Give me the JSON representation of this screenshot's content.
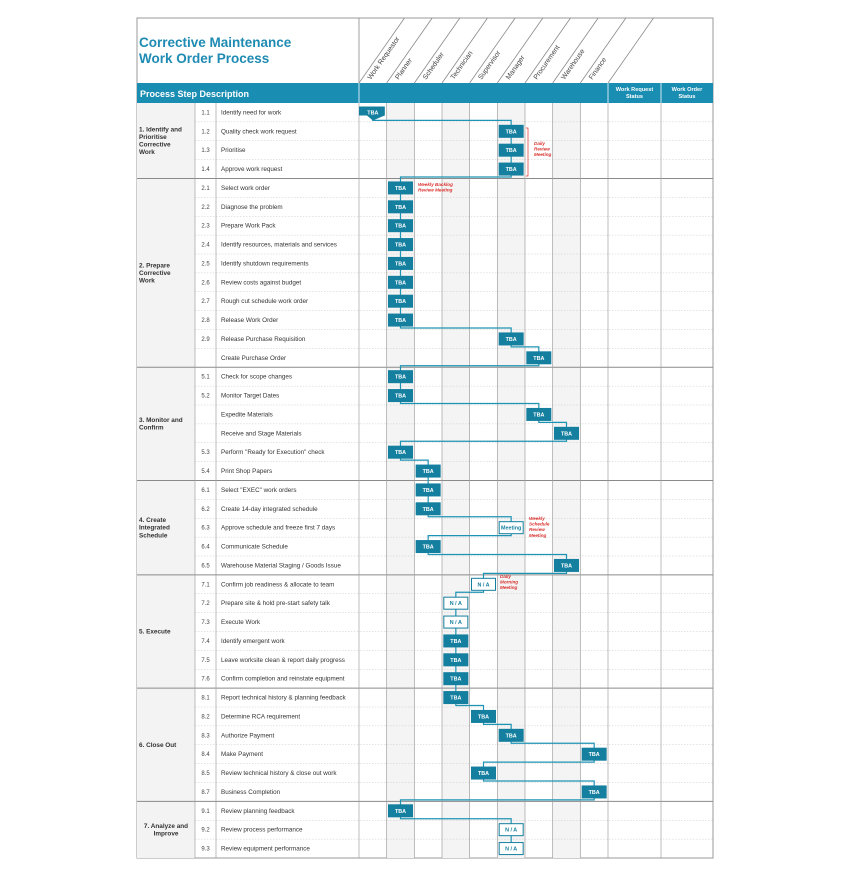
{
  "header": {
    "title_lines": [
      "Corrective Maintenance",
      "Work Order Process"
    ],
    "section_label": "Process Step Description",
    "roles": [
      "Work Requestor",
      "Planner",
      "Scheduler",
      "Technician",
      "Supervisor",
      "Manager",
      "Procurement",
      "Warehouse",
      "Finance"
    ],
    "status_columns": [
      [
        "Work Request",
        "Status"
      ],
      [
        "Work Order",
        "Status"
      ]
    ]
  },
  "phases": [
    {
      "label_lines": [
        "1. Identify and",
        "Prioritise",
        "Corrective",
        "Work"
      ],
      "steps": [
        {
          "number": "1.1",
          "description": "Identify need for work",
          "col": 0,
          "box": "TBA"
        },
        {
          "number": "1.2",
          "description": "Quality check work request",
          "col": 5,
          "box": "TBA"
        },
        {
          "number": "1.3",
          "description": "Prioritise",
          "col": 5,
          "box": "TBA"
        },
        {
          "number": "1.4",
          "description": "Approve work request",
          "col": 5,
          "box": "TBA"
        }
      ]
    },
    {
      "label_lines": [
        "2. Prepare",
        "Corrective",
        "Work"
      ],
      "steps": [
        {
          "number": "2.1",
          "description": "Select work order",
          "col": 1,
          "box": "TBA"
        },
        {
          "number": "2.2",
          "description": "Diagnose the problem",
          "col": 1,
          "box": "TBA"
        },
        {
          "number": "2.3",
          "description": "Prepare Work Pack",
          "col": 1,
          "box": "TBA"
        },
        {
          "number": "2.4",
          "description": "Identify resources, materials and services",
          "col": 1,
          "box": "TBA"
        },
        {
          "number": "2.5",
          "description": "Identify shutdown requirements",
          "col": 1,
          "box": "TBA"
        },
        {
          "number": "2.6",
          "description": "Review costs against budget",
          "col": 1,
          "box": "TBA"
        },
        {
          "number": "2.7",
          "description": "Rough cut schedule work order",
          "col": 1,
          "box": "TBA"
        },
        {
          "number": "2.8",
          "description": "Release Work Order",
          "col": 1,
          "box": "TBA"
        },
        {
          "number": "2.9",
          "description": "Release Purchase Requisition",
          "col": 5,
          "box": "TBA"
        },
        {
          "number": null,
          "description": "Create Purchase Order",
          "col": 6,
          "box": "TBA"
        }
      ]
    },
    {
      "label_lines": [
        "3. Monitor and",
        "Confirm"
      ],
      "steps": [
        {
          "number": "5.1",
          "description": "Check for scope changes",
          "col": 1,
          "box": "TBA"
        },
        {
          "number": "5.2",
          "description": "Monitor Target Dates",
          "col": 1,
          "box": "TBA"
        },
        {
          "number": null,
          "description": "Expedite Materials",
          "col": 6,
          "box": "TBA"
        },
        {
          "number": null,
          "description": "Receive and Stage Materials",
          "col": 7,
          "box": "TBA"
        },
        {
          "number": "5.3",
          "description": "Perform \"Ready for Execution\" check",
          "col": 1,
          "box": "TBA"
        },
        {
          "number": "5.4",
          "description": "Print Shop Papers",
          "col": 2,
          "box": "TBA"
        }
      ]
    },
    {
      "label_lines": [
        "4. Create",
        "Integrated",
        "Schedule"
      ],
      "steps": [
        {
          "number": "6.1",
          "description": "Select \"EXEC\" work orders",
          "col": 2,
          "box": "TBA"
        },
        {
          "number": "6.2",
          "description": "Create 14-day integrated schedule",
          "col": 2,
          "box": "TBA"
        },
        {
          "number": "6.3",
          "description": "Approve schedule and freeze first 7 days",
          "col": 5,
          "box": "Meeting"
        },
        {
          "number": "6.4",
          "description": "Communicate Schedule",
          "col": 2,
          "box": "TBA"
        },
        {
          "number": "6.5",
          "description": "Warehouse Material Staging / Goods Issue",
          "col": 7,
          "box": "TBA"
        }
      ]
    },
    {
      "label_lines": [
        "5. Execute"
      ],
      "steps": [
        {
          "number": "7.1",
          "description": "Confirm job readiness & allocate to team",
          "col": 4,
          "box": "N / A"
        },
        {
          "number": "7.2",
          "description": "Prepare site & hold pre-start safety talk",
          "col": 3,
          "box": "N / A"
        },
        {
          "number": "7.3",
          "description": "Execute Work",
          "col": 3,
          "box": "N / A"
        },
        {
          "number": "7.4",
          "description": "Identify emergent work",
          "col": 3,
          "box": "TBA"
        },
        {
          "number": "7.5",
          "description": "Leave worksite clean & report daily progress",
          "col": 3,
          "box": "TBA"
        },
        {
          "number": "7.6",
          "description": "Confirm completion and reinstate equipment",
          "col": 3,
          "box": "TBA"
        }
      ]
    },
    {
      "label_lines": [
        "6. Close Out"
      ],
      "steps": [
        {
          "number": "8.1",
          "description": "Report technical history & planning feedback",
          "col": 3,
          "box": "TBA"
        },
        {
          "number": "8.2",
          "description": "Determine RCA requirement",
          "col": 4,
          "box": "TBA"
        },
        {
          "number": "8.3",
          "description": "Authorize Payment",
          "col": 5,
          "box": "TBA"
        },
        {
          "number": "8.4",
          "description": "Make Payment",
          "col": 8,
          "box": "TBA"
        },
        {
          "number": "8.5",
          "description": "Review technical history & close out work",
          "col": 4,
          "box": "TBA"
        },
        {
          "number": "8.7",
          "description": "Business Completion",
          "col": 8,
          "box": "TBA"
        }
      ]
    },
    {
      "label_lines": [
        "7. Analyze and",
        "Improve"
      ],
      "steps": [
        {
          "number": "9.1",
          "description": "Review planning feedback",
          "col": 1,
          "box": "TBA"
        },
        {
          "number": "9.2",
          "description": "Review process performance",
          "col": 5,
          "box": "N / A"
        },
        {
          "number": "9.3",
          "description": "Review equipment performance",
          "col": 5,
          "box": "N / A"
        }
      ]
    }
  ],
  "annotations": [
    {
      "lines": [
        "Daily",
        "Review",
        "Meeting"
      ]
    },
    {
      "lines": [
        "Weekly Backlog",
        "Review Meeting"
      ]
    },
    {
      "lines": [
        "Weekly",
        "Schedule",
        "Review",
        "Meeting"
      ]
    },
    {
      "lines": [
        "Daily",
        "Morning",
        "Meeting"
      ]
    }
  ]
}
